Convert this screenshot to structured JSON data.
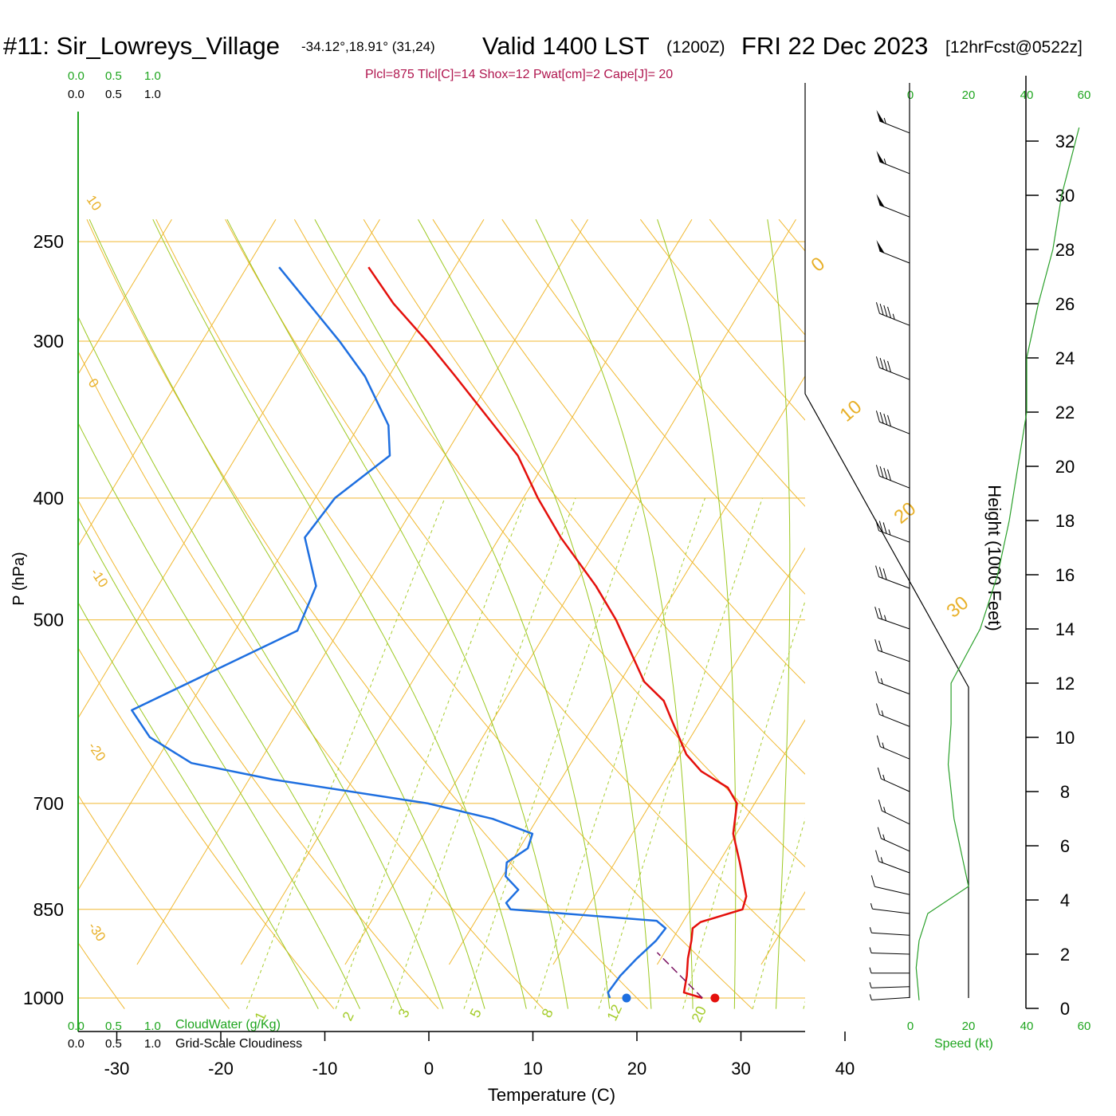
{
  "header": {
    "station": "#11: Sir_Lowreys_Village",
    "coords": "-34.12°,18.91° (31,24)",
    "valid": "Valid 1400 LST",
    "zulu": "(1200Z)",
    "date": "FRI 22 Dec 2023",
    "forecast": "[12hrFcst@0522z]",
    "indices": "Plcl=875 Tlcl[C]=14 Shox=12 Pwat[cm]=2 Cape[J]= 20"
  },
  "cloud_scale": {
    "ticks": [
      "0.0",
      "0.5",
      "1.0"
    ],
    "cloudwater_label": "CloudWater (g/Kg)",
    "cloudiness_label": "Grid-Scale Cloudiness"
  },
  "speed_axis": {
    "ticks": [
      "0",
      "20",
      "40",
      "60"
    ],
    "label": "Speed (kt)"
  },
  "colors": {
    "temperature": "#e4100c",
    "dewpoint": "#1e6fe0",
    "isotherm": "#f0b830",
    "mixing_ratio": "#a8cc2c",
    "moist_adiabat": "#9cc820",
    "speed_profile": "#2aa02a",
    "text_green": "#1fa51f",
    "text_maroon": "#b0164f"
  },
  "chart_data": {
    "type": "skew-t",
    "xlabel": "Temperature (C)",
    "ylabel": "P (hPa)",
    "y2label": "Height (1000 Feet)",
    "x_ticks": [
      -30,
      -20,
      -10,
      0,
      10,
      20,
      30,
      40
    ],
    "p_ticks": [
      250,
      300,
      400,
      500,
      700,
      850,
      1000
    ],
    "height_ticks": [
      0,
      2,
      4,
      6,
      8,
      10,
      12,
      14,
      16,
      18,
      20,
      22,
      24,
      26,
      28,
      30,
      32
    ],
    "isotherm_labels": [
      "10",
      "0",
      "-10",
      "-20",
      "-30",
      "0",
      "10",
      "20",
      "30"
    ],
    "mixing_ratio_labels": [
      "1",
      "2",
      "3",
      "5",
      "8",
      "12",
      "20"
    ],
    "temperature_profile": [
      {
        "p": 1000,
        "t": 26.3
      },
      {
        "p": 990,
        "t": 24.2
      },
      {
        "p": 960,
        "t": 23.5
      },
      {
        "p": 930,
        "t": 22.6
      },
      {
        "p": 900,
        "t": 21.9
      },
      {
        "p": 880,
        "t": 21.3
      },
      {
        "p": 870,
        "t": 21.7
      },
      {
        "p": 850,
        "t": 25.0
      },
      {
        "p": 830,
        "t": 24.6
      },
      {
        "p": 780,
        "t": 22.0
      },
      {
        "p": 740,
        "t": 19.7
      },
      {
        "p": 700,
        "t": 18.3
      },
      {
        "p": 680,
        "t": 16.5
      },
      {
        "p": 660,
        "t": 13.0
      },
      {
        "p": 640,
        "t": 10.6
      },
      {
        "p": 600,
        "t": 7.1
      },
      {
        "p": 580,
        "t": 5.3
      },
      {
        "p": 560,
        "t": 2.3
      },
      {
        "p": 500,
        "t": -4.0
      },
      {
        "p": 470,
        "t": -7.9
      },
      {
        "p": 430,
        "t": -14.1
      },
      {
        "p": 400,
        "t": -18.6
      },
      {
        "p": 370,
        "t": -23.0
      },
      {
        "p": 320,
        "t": -33.6
      },
      {
        "p": 300,
        "t": -38.4
      },
      {
        "p": 280,
        "t": -43.8
      },
      {
        "p": 262,
        "t": -48.3
      }
    ],
    "dewpoint_profile": [
      {
        "p": 1000,
        "t": 17.4
      },
      {
        "p": 990,
        "t": 16.9
      },
      {
        "p": 960,
        "t": 17.1
      },
      {
        "p": 930,
        "t": 17.7
      },
      {
        "p": 900,
        "t": 18.5
      },
      {
        "p": 880,
        "t": 18.7
      },
      {
        "p": 868,
        "t": 17.4
      },
      {
        "p": 850,
        "t": 2.7
      },
      {
        "p": 840,
        "t": 1.9
      },
      {
        "p": 820,
        "t": 2.3
      },
      {
        "p": 800,
        "t": 0.3
      },
      {
        "p": 780,
        "t": -0.4
      },
      {
        "p": 760,
        "t": 0.8
      },
      {
        "p": 740,
        "t": 0.4
      },
      {
        "p": 720,
        "t": -4.3
      },
      {
        "p": 700,
        "t": -11.4
      },
      {
        "p": 670,
        "t": -27.7
      },
      {
        "p": 650,
        "t": -36.5
      },
      {
        "p": 620,
        "t": -42.0
      },
      {
        "p": 590,
        "t": -45.3
      },
      {
        "p": 510,
        "t": -34.0
      },
      {
        "p": 470,
        "t": -34.8
      },
      {
        "p": 430,
        "t": -38.7
      },
      {
        "p": 400,
        "t": -38.1
      },
      {
        "p": 370,
        "t": -35.3
      },
      {
        "p": 350,
        "t": -37.2
      },
      {
        "p": 320,
        "t": -42.3
      },
      {
        "p": 300,
        "t": -46.8
      },
      {
        "p": 262,
        "t": -56.9
      }
    ],
    "surface": {
      "t": 27.5,
      "td": 19.0,
      "p": 1000
    },
    "parcel_path": [
      {
        "p": 1000,
        "t": 26.3
      },
      {
        "p": 920,
        "t": 19.3
      }
    ],
    "wind_speed_profile": [
      {
        "h": 0.3,
        "kt": 3
      },
      {
        "h": 1.5,
        "kt": 2
      },
      {
        "h": 2.5,
        "kt": 3
      },
      {
        "h": 3.5,
        "kt": 6
      },
      {
        "h": 4.5,
        "kt": 20
      },
      {
        "h": 5.5,
        "kt": 18
      },
      {
        "h": 7,
        "kt": 15
      },
      {
        "h": 9,
        "kt": 13
      },
      {
        "h": 10.5,
        "kt": 14
      },
      {
        "h": 12,
        "kt": 14
      },
      {
        "h": 13,
        "kt": 19
      },
      {
        "h": 14,
        "kt": 24
      },
      {
        "h": 16,
        "kt": 30
      },
      {
        "h": 18,
        "kt": 34
      },
      {
        "h": 20,
        "kt": 37
      },
      {
        "h": 22,
        "kt": 40
      },
      {
        "h": 24,
        "kt": 40
      },
      {
        "h": 26,
        "kt": 44
      },
      {
        "h": 28,
        "kt": 49
      },
      {
        "h": 30,
        "kt": 52
      },
      {
        "h": 32.5,
        "kt": 58
      }
    ],
    "wind_barbs": [
      {
        "h": 0.4,
        "kt": 5,
        "dir": 160
      },
      {
        "h": 0.8,
        "kt": 5,
        "dir": 170
      },
      {
        "h": 1.3,
        "kt": 5,
        "dir": 180
      },
      {
        "h": 2,
        "kt": 5,
        "dir": 190
      },
      {
        "h": 2.7,
        "kt": 5,
        "dir": 200
      },
      {
        "h": 3.5,
        "kt": 5,
        "dir": 220
      },
      {
        "h": 4.2,
        "kt": 10,
        "dir": 250
      },
      {
        "h": 5,
        "kt": 15,
        "dir": 285
      },
      {
        "h": 5.8,
        "kt": 15,
        "dir": 300
      },
      {
        "h": 6.8,
        "kt": 15,
        "dir": 305
      },
      {
        "h": 8,
        "kt": 15,
        "dir": 300
      },
      {
        "h": 9.2,
        "kt": 15,
        "dir": 295
      },
      {
        "h": 10.4,
        "kt": 15,
        "dir": 290
      },
      {
        "h": 11.6,
        "kt": 15,
        "dir": 285
      },
      {
        "h": 12.8,
        "kt": 20,
        "dir": 280
      },
      {
        "h": 14,
        "kt": 25,
        "dir": 280
      },
      {
        "h": 15.5,
        "kt": 30,
        "dir": 285
      },
      {
        "h": 17.2,
        "kt": 35,
        "dir": 285
      },
      {
        "h": 19.2,
        "kt": 40,
        "dir": 290
      },
      {
        "h": 21.2,
        "kt": 40,
        "dir": 290
      },
      {
        "h": 23.2,
        "kt": 40,
        "dir": 290
      },
      {
        "h": 25.2,
        "kt": 45,
        "dir": 290
      },
      {
        "h": 27.5,
        "kt": 50,
        "dir": 290
      },
      {
        "h": 29.2,
        "kt": 50,
        "dir": 290
      },
      {
        "h": 30.8,
        "kt": 55,
        "dir": 290
      },
      {
        "h": 32.3,
        "kt": 55,
        "dir": 290
      }
    ]
  }
}
